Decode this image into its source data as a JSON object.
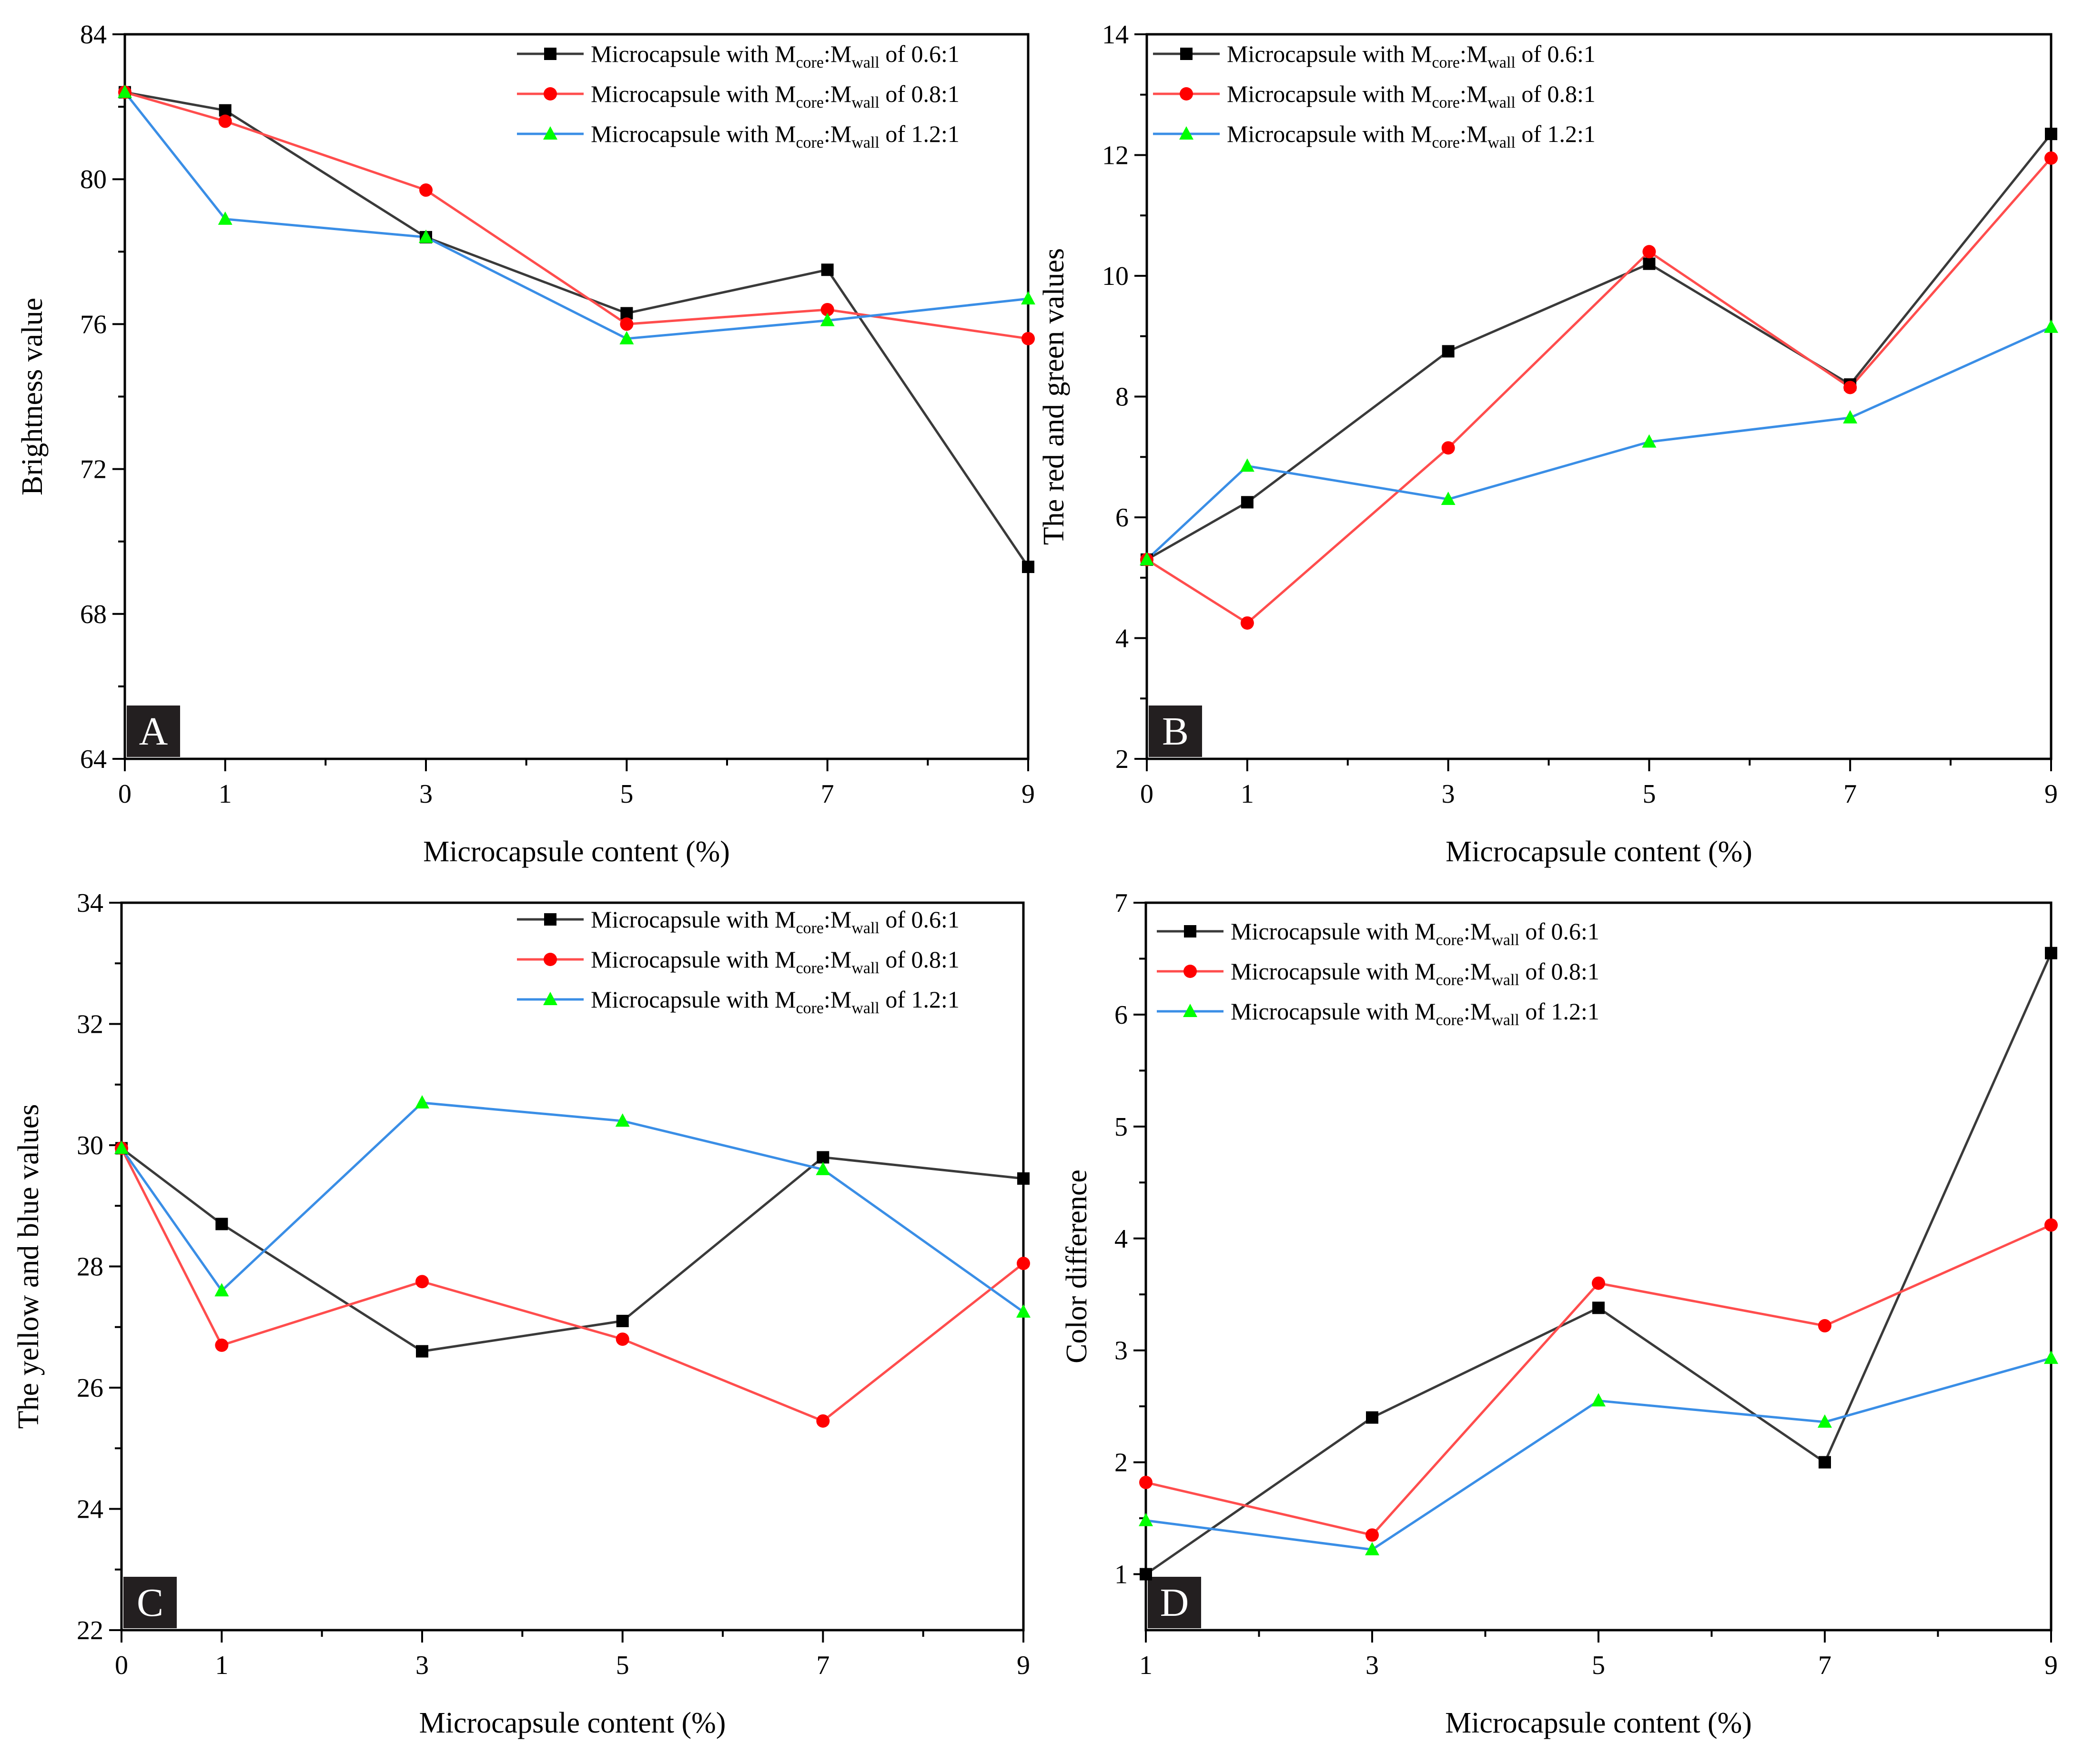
{
  "colors": {
    "series_black": "#3a3a3a",
    "marker_black": "#000000",
    "series_red_line": "#ff4d4d",
    "marker_red": "#ff0000",
    "series_blue_line": "#3a8ee6",
    "marker_green": "#00ff00"
  },
  "legend": {
    "prefix": "Microcapsule with M",
    "sub_core": "core",
    "sep": ":M",
    "sub_wall": "wall",
    "entries": [
      " of 0.6:1",
      " of 0.8:1",
      " of 1.2:1"
    ]
  },
  "chart_data": [
    {
      "panel": "A",
      "type": "line",
      "xlabel": "Microcapsule content (%)",
      "ylabel": "Brightness value",
      "x": [
        0,
        1,
        3,
        5,
        7,
        9
      ],
      "xticks": [
        0,
        1,
        3,
        5,
        7,
        9
      ],
      "xlim": [
        0,
        9
      ],
      "ylim": [
        64,
        84
      ],
      "yticks": [
        64,
        68,
        72,
        76,
        80,
        84
      ],
      "series": [
        {
          "name": "Microcapsule with Mcore:Mwall of 0.6:1",
          "marker": "square",
          "values": [
            82.4,
            81.9,
            78.4,
            76.3,
            77.5,
            69.3
          ]
        },
        {
          "name": "Microcapsule with Mcore:Mwall of 0.8:1",
          "marker": "circle",
          "values": [
            82.4,
            81.6,
            79.7,
            76.0,
            76.4,
            75.6
          ]
        },
        {
          "name": "Microcapsule with Mcore:Mwall of 1.2:1",
          "marker": "triangle",
          "values": [
            82.4,
            78.9,
            78.4,
            75.6,
            76.1,
            76.7
          ]
        }
      ]
    },
    {
      "panel": "B",
      "type": "line",
      "xlabel": "Microcapsule content (%)",
      "ylabel": "The red and green values",
      "x": [
        0,
        1,
        3,
        5,
        7,
        9
      ],
      "xticks": [
        0,
        1,
        3,
        5,
        7,
        9
      ],
      "xlim": [
        0,
        9
      ],
      "ylim": [
        2,
        14
      ],
      "yticks": [
        2,
        4,
        6,
        8,
        10,
        12,
        14
      ],
      "series": [
        {
          "name": "Microcapsule with Mcore:Mwall of 0.6:1",
          "marker": "square",
          "values": [
            5.3,
            6.25,
            8.75,
            10.2,
            8.2,
            12.35
          ]
        },
        {
          "name": "Microcapsule with Mcore:Mwall of 0.8:1",
          "marker": "circle",
          "values": [
            5.3,
            4.25,
            7.15,
            10.4,
            8.15,
            11.95
          ]
        },
        {
          "name": "Microcapsule with Mcore:Mwall of 1.2:1",
          "marker": "triangle",
          "values": [
            5.3,
            6.85,
            6.3,
            7.25,
            7.65,
            9.15
          ]
        }
      ]
    },
    {
      "panel": "C",
      "type": "line",
      "xlabel": "Microcapsule content (%)",
      "ylabel": "The yellow and blue values",
      "x": [
        0,
        1,
        3,
        5,
        7,
        9
      ],
      "xticks": [
        0,
        1,
        3,
        5,
        7,
        9
      ],
      "xlim": [
        0,
        9
      ],
      "ylim": [
        22,
        34
      ],
      "yticks": [
        22,
        24,
        26,
        28,
        30,
        32,
        34
      ],
      "series": [
        {
          "name": "Microcapsule with Mcore:Mwall of 0.6:1",
          "marker": "square",
          "values": [
            29.95,
            28.7,
            26.6,
            27.1,
            29.8,
            29.45
          ]
        },
        {
          "name": "Microcapsule with Mcore:Mwall of 0.8:1",
          "marker": "circle",
          "values": [
            29.95,
            26.7,
            27.75,
            26.8,
            25.45,
            28.05
          ]
        },
        {
          "name": "Microcapsule with Mcore:Mwall of 1.2:1",
          "marker": "triangle",
          "values": [
            29.95,
            27.6,
            30.7,
            30.4,
            29.6,
            27.25
          ]
        }
      ]
    },
    {
      "panel": "D",
      "type": "line",
      "xlabel": "Microcapsule content (%)",
      "ylabel": "Color difference",
      "x": [
        1,
        3,
        5,
        7,
        9
      ],
      "xticks": [
        1,
        3,
        5,
        7,
        9
      ],
      "xlim": [
        1,
        9
      ],
      "ylim": [
        0.5,
        7
      ],
      "yticks": [
        1,
        2,
        3,
        4,
        5,
        6,
        7
      ],
      "series": [
        {
          "name": "Microcapsule with Mcore:Mwall of 0.6:1",
          "marker": "square",
          "values": [
            1.0,
            2.4,
            3.38,
            2.0,
            6.55
          ]
        },
        {
          "name": "Microcapsule with Mcore:Mwall of 0.8:1",
          "marker": "circle",
          "values": [
            1.82,
            1.35,
            3.6,
            3.22,
            4.12
          ]
        },
        {
          "name": "Microcapsule with Mcore:Mwall of 1.2:1",
          "marker": "triangle",
          "values": [
            1.48,
            1.22,
            2.55,
            2.36,
            2.93
          ]
        }
      ]
    }
  ]
}
